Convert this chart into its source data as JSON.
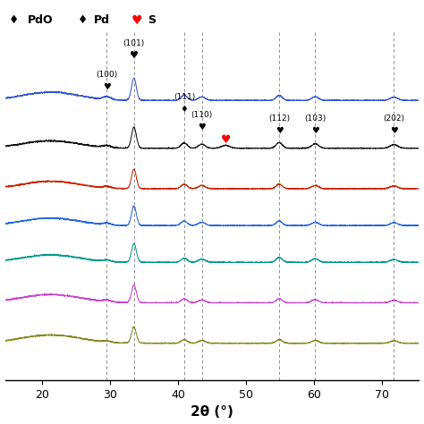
{
  "xlabel": "2θ (°)",
  "xlim": [
    14.5,
    75.5
  ],
  "xticks": [
    20,
    30,
    40,
    50,
    60,
    70
  ],
  "colors": [
    "#3355cc",
    "#111111",
    "#cc2200",
    "#2266dd",
    "#009988",
    "#cc44cc",
    "#888820"
  ],
  "dashed_lines": [
    29.5,
    33.5,
    40.9,
    43.5,
    54.9,
    60.2,
    71.8
  ],
  "n_curves": 7,
  "offsets": [
    0.76,
    0.63,
    0.52,
    0.42,
    0.32,
    0.21,
    0.1
  ],
  "scale": 0.11,
  "background_color": "#ffffff",
  "noise": 0.008
}
